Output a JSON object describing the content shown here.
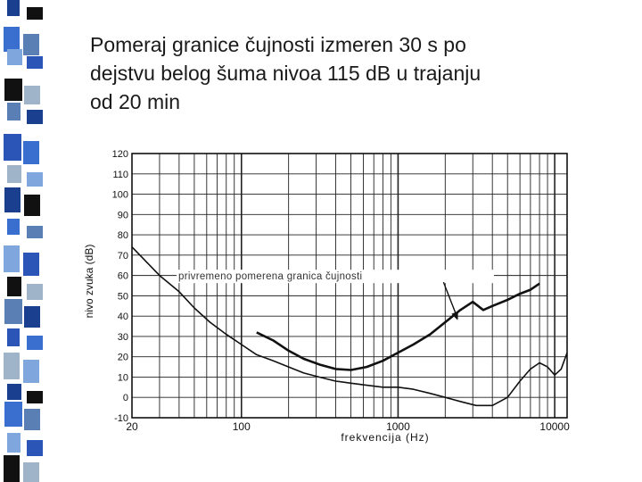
{
  "slide": {
    "title_lines": [
      "Pomeraj granice čujnosti izmeren 30 s po",
      "dejstvu belog šuma nivoa 115 dB u trajanju",
      "od 20 min"
    ]
  },
  "stripe_colors": [
    "#1b3f8f",
    "#3a6fd0",
    "#7fa7dd",
    "#111111",
    "#5a7fb5",
    "#2c55b8",
    "#9fb3c9"
  ],
  "chart_data": {
    "type": "line",
    "title": "",
    "xlabel": "frekvencija (Hz)",
    "ylabel": "nivo zvuka (dB)",
    "xscale": "log",
    "xlim": [
      20,
      12000
    ],
    "ylim": [
      -10,
      120
    ],
    "xticks": [
      20,
      100,
      1000,
      10000
    ],
    "yticks": [
      120,
      110,
      100,
      90,
      80,
      70,
      60,
      50,
      40,
      30,
      20,
      10,
      0,
      -10
    ],
    "grid": true,
    "annotation": {
      "text": "privremeno pomerena granica čujnosti",
      "target": [
        2400,
        38
      ]
    },
    "series": [
      {
        "role": "threshold shifted",
        "color": "#111111",
        "x": [
          125,
          160,
          200,
          250,
          320,
          400,
          500,
          630,
          800,
          1000,
          1250,
          1600,
          2000,
          2500,
          3000,
          3500,
          4000,
          5000,
          6000,
          7000,
          8000
        ],
        "y": [
          32,
          28,
          23,
          19,
          16,
          14,
          13.5,
          15,
          18,
          22,
          26,
          31,
          37,
          43,
          47,
          43,
          45,
          48,
          51,
          53,
          56
        ]
      },
      {
        "role": "normal threshold",
        "color": "#111111",
        "x": [
          20,
          30,
          40,
          50,
          63,
          80,
          100,
          125,
          160,
          200,
          250,
          315,
          400,
          500,
          630,
          800,
          1000,
          1250,
          1600,
          2000,
          2500,
          3150,
          4000,
          5000,
          6000,
          7000,
          8000,
          9000,
          10000,
          11000,
          12000
        ],
        "y": [
          74,
          60,
          52,
          44,
          37,
          31,
          26,
          21,
          18,
          15,
          12,
          10,
          8,
          7,
          6,
          5,
          5,
          4,
          2,
          0,
          -2,
          -4,
          -4,
          0,
          8,
          14,
          17,
          15,
          11,
          14,
          22
        ]
      }
    ]
  }
}
